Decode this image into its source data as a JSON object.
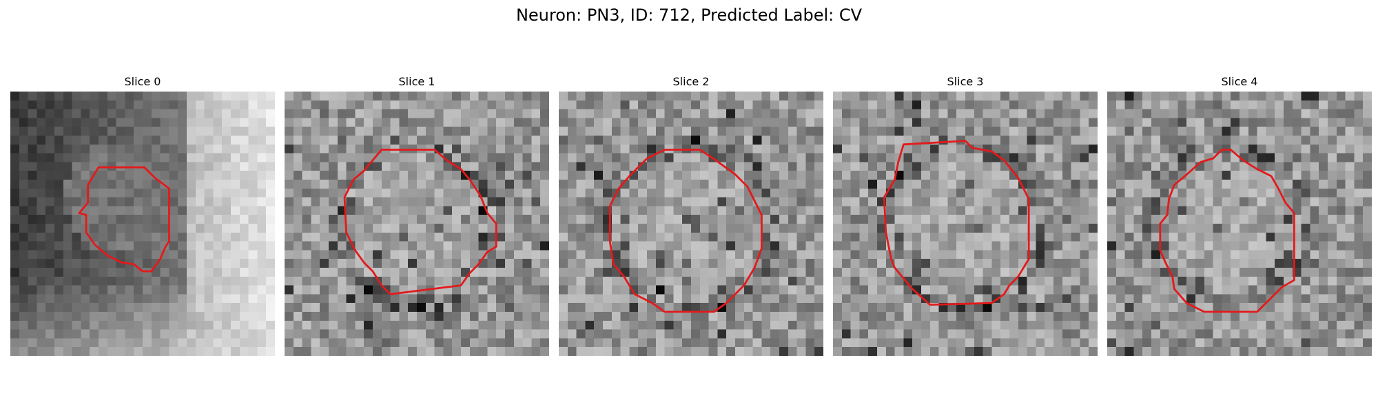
{
  "figure": {
    "title": "Neuron: PN3, ID: 712, Predicted Label: CV"
  },
  "contour_color": "#e31a1c",
  "colormap": "grayscale",
  "panels": [
    {
      "title": "Slice 0",
      "image": "grayscale EM crop with red contour outlining a small round neuron profile"
    },
    {
      "title": "Slice 1",
      "image": "grayscale EM crop with red contour outlining a round neuron profile"
    },
    {
      "title": "Slice 2",
      "image": "grayscale EM crop with red contour outlining a round neuron profile"
    },
    {
      "title": "Slice 3",
      "image": "grayscale EM crop with red contour outlining a round neuron profile"
    },
    {
      "title": "Slice 4",
      "image": "grayscale EM crop with red contour outlining a round neuron profile"
    }
  ]
}
